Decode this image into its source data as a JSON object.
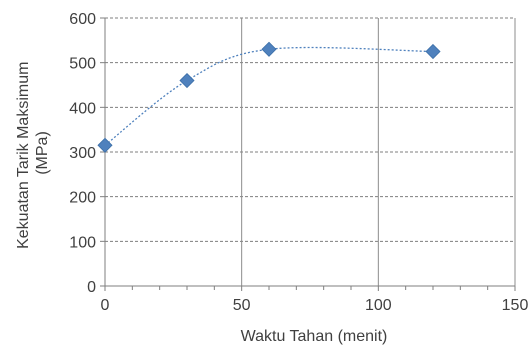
{
  "chart_data": {
    "type": "scatter",
    "title": "",
    "xlabel": "Waktu Tahan (menit)",
    "ylabel_lines": [
      "Kekuatan Tarik Maksimum",
      "(MPa)"
    ],
    "xlim": [
      0,
      150
    ],
    "ylim": [
      0,
      600
    ],
    "x_ticks": [
      0,
      50,
      100,
      150
    ],
    "y_ticks": [
      0,
      100,
      200,
      300,
      400,
      500,
      600
    ],
    "grid": {
      "x_major": true,
      "y_major": true
    },
    "x": [
      0,
      30,
      60,
      120
    ],
    "y": [
      315,
      460,
      530,
      525
    ],
    "marker": "diamond",
    "marker_color": "#4F81BD",
    "trendline": {
      "style": "dotted",
      "color": "#4F81BD",
      "type": "smooth"
    }
  }
}
